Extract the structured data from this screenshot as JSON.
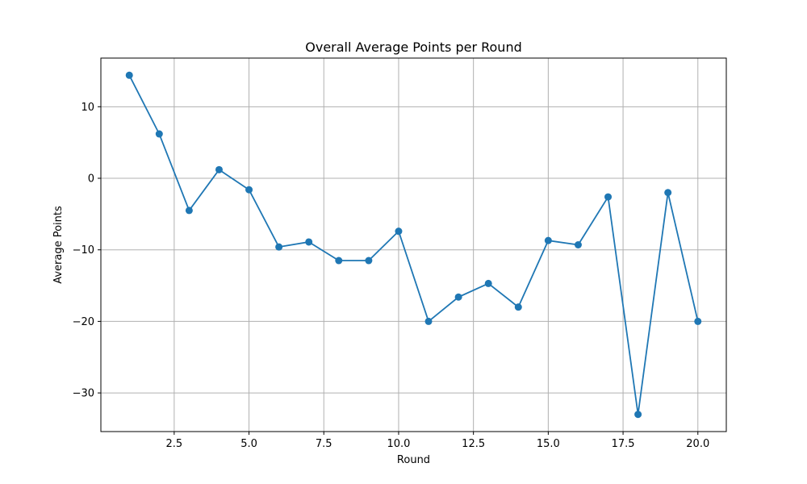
{
  "chart_data": {
    "type": "line",
    "title": "Overall Average Points per Round",
    "xlabel": "Round",
    "ylabel": "Average Points",
    "x": [
      1,
      2,
      3,
      4,
      5,
      6,
      7,
      8,
      9,
      10,
      11,
      12,
      13,
      14,
      15,
      16,
      17,
      18,
      19,
      20
    ],
    "series": [
      {
        "values": [
          14.4,
          6.2,
          -4.5,
          1.2,
          -1.6,
          -9.6,
          -8.9,
          -11.5,
          -11.5,
          -7.4,
          -20.0,
          -16.6,
          -14.7,
          -18.0,
          -8.7,
          -9.3,
          -2.6,
          -33.0,
          -2.0,
          -20.0
        ],
        "color": "#1f77b4",
        "marker": "circle"
      }
    ],
    "xlim": [
      0.05,
      20.95
    ],
    "ylim": [
      -35.4,
      16.8
    ],
    "xticks": [
      2.5,
      5.0,
      7.5,
      10.0,
      12.5,
      15.0,
      17.5,
      20.0
    ],
    "xtick_labels": [
      "2.5",
      "5.0",
      "7.5",
      "10.0",
      "12.5",
      "15.0",
      "17.5",
      "20.0"
    ],
    "yticks": [
      -30,
      -20,
      -10,
      0,
      10
    ],
    "ytick_labels": [
      "−30",
      "−20",
      "−10",
      "0",
      "10"
    ],
    "grid": true,
    "colors": {
      "line": "#1f77b4",
      "grid": "#b0b0b0",
      "axes": "#000000"
    }
  }
}
